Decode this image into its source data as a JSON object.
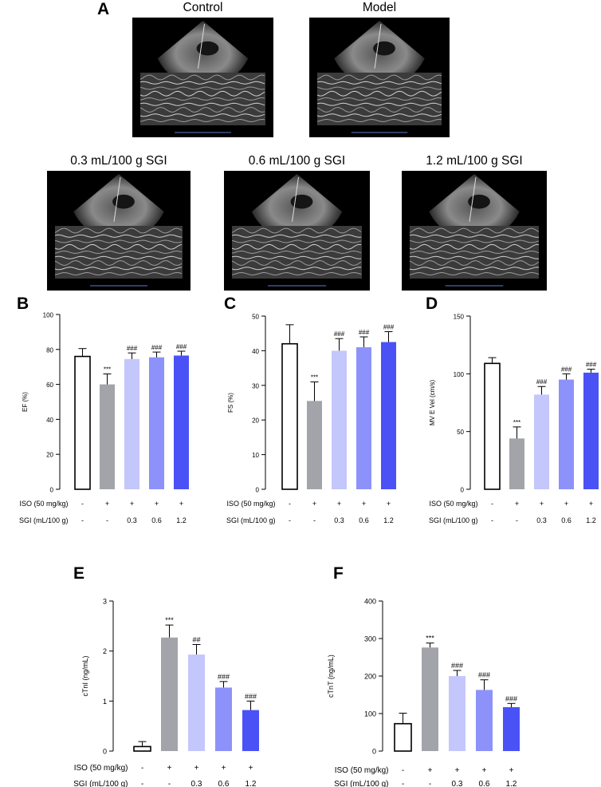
{
  "figure": {
    "panel_a": {
      "letter": "A",
      "images": [
        {
          "title": "Control"
        },
        {
          "title": "Model"
        },
        {
          "title": "0.3 mL/100 g SGI"
        },
        {
          "title": "0.6 mL/100 g SGI"
        },
        {
          "title": "1.2 mL/100 g SGI"
        }
      ]
    },
    "treatment_rows": {
      "iso_label": "ISO (50 mg/kg)",
      "sgi_label": "SGI (mL/100 g)",
      "iso_values": [
        "-",
        "+",
        "+",
        "+",
        "+"
      ],
      "sgi_values": [
        "-",
        "-",
        "0.3",
        "0.6",
        "1.2"
      ]
    },
    "colors": {
      "control": "#ffffff",
      "model": "#a3a3aa",
      "sgi_0_3": "#c4c7fb",
      "sgi_0_6": "#8d92fa",
      "sgi_1_2": "#4a52f6",
      "stroke": "#000000"
    }
  },
  "chart_data": [
    {
      "panel": "B",
      "type": "bar",
      "categories": [
        "Control",
        "Model",
        "0.3 mL/100 g SGI",
        "0.6 mL/100 g SGI",
        "1.2 mL/100 g SGI"
      ],
      "values": [
        76,
        60,
        74.5,
        75.5,
        76.5
      ],
      "errors": [
        4.5,
        6,
        3.5,
        3,
        2.5
      ],
      "annotations": [
        "",
        "***",
        "###",
        "###",
        "###"
      ],
      "ylabel": "EF (%)",
      "ylim": [
        0,
        100
      ],
      "yticks": [
        "0",
        "20",
        "40",
        "60",
        "80",
        "100"
      ]
    },
    {
      "panel": "C",
      "type": "bar",
      "categories": [
        "Control",
        "Model",
        "0.3 mL/100 g SGI",
        "0.6 mL/100 g SGI",
        "1.2 mL/100 g SGI"
      ],
      "values": [
        42,
        25.5,
        40,
        41,
        42.5
      ],
      "errors": [
        5.5,
        5.5,
        3.5,
        3,
        3
      ],
      "annotations": [
        "",
        "***",
        "###",
        "###",
        "###"
      ],
      "ylabel": "FS (%)",
      "ylim": [
        0,
        50
      ],
      "yticks": [
        "0",
        "10",
        "20",
        "30",
        "40",
        "50"
      ]
    },
    {
      "panel": "D",
      "type": "bar",
      "categories": [
        "Control",
        "Model",
        "0.3 mL/100 g SGI",
        "0.6 mL/100 g SGI",
        "1.2 mL/100 g SGI"
      ],
      "values": [
        109,
        44,
        82,
        95,
        101
      ],
      "errors": [
        5,
        10,
        7,
        5,
        3
      ],
      "annotations": [
        "",
        "***",
        "###",
        "###",
        "###"
      ],
      "ylabel": "MV E Vel (cm/s)",
      "ylim": [
        0,
        150
      ],
      "yticks": [
        "0",
        "50",
        "100",
        "150"
      ]
    },
    {
      "panel": "E",
      "type": "bar",
      "categories": [
        "Control",
        "Model",
        "0.3 mL/100 g SGI",
        "0.6 mL/100 g SGI",
        "1.2 mL/100 g SGI"
      ],
      "values": [
        0.09,
        2.27,
        1.93,
        1.27,
        0.82
      ],
      "errors": [
        0.1,
        0.25,
        0.2,
        0.12,
        0.18
      ],
      "annotations": [
        "",
        "***",
        "##",
        "###",
        "###"
      ],
      "ylabel": "cTnI (ng/mL)",
      "ylim": [
        0,
        3
      ],
      "yticks": [
        "0",
        "1",
        "2",
        "3"
      ]
    },
    {
      "panel": "F",
      "type": "bar",
      "categories": [
        "Control",
        "Model",
        "0.3 mL/100 g SGI",
        "0.6 mL/100 g SGI",
        "1.2 mL/100 g SGI"
      ],
      "values": [
        73,
        276,
        200,
        163,
        117
      ],
      "errors": [
        28,
        12,
        15,
        27,
        10
      ],
      "annotations": [
        "",
        "***",
        "###",
        "###",
        "###"
      ],
      "ylabel": "cTnT (ng/mL)",
      "ylim": [
        0,
        400
      ],
      "yticks": [
        "0",
        "100",
        "200",
        "300",
        "400"
      ]
    }
  ]
}
